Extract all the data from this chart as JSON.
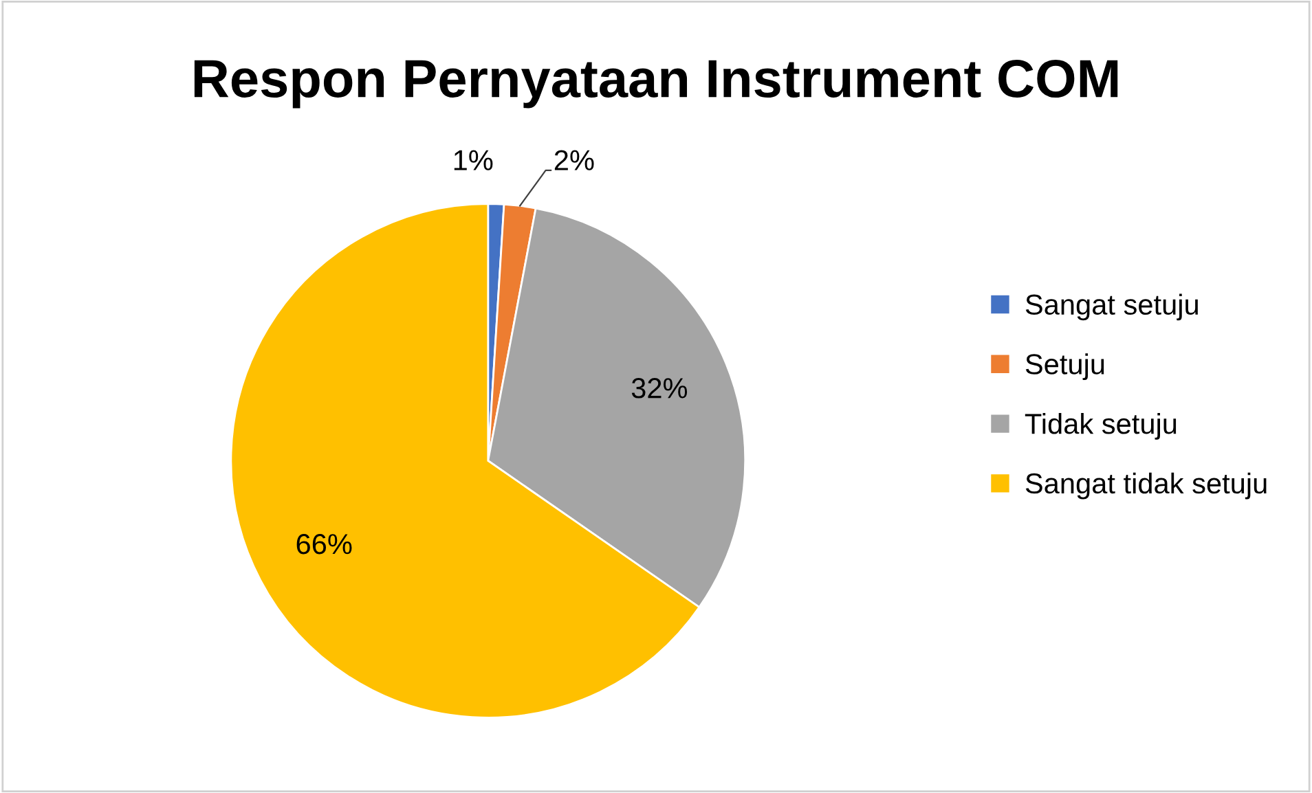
{
  "chart_data": {
    "type": "pie",
    "title": "Respon Pernyataan Instrument COM",
    "categories": [
      "Sangat setuju",
      "Setuju",
      "Tidak setuju",
      "Sangat tidak setuju"
    ],
    "values": [
      1,
      2,
      32,
      66
    ],
    "value_labels": [
      "1%",
      "2%",
      "32%",
      "66%"
    ],
    "colors": [
      "#4472c4",
      "#ed7d31",
      "#a5a5a5",
      "#ffc000"
    ],
    "legend": "right"
  }
}
